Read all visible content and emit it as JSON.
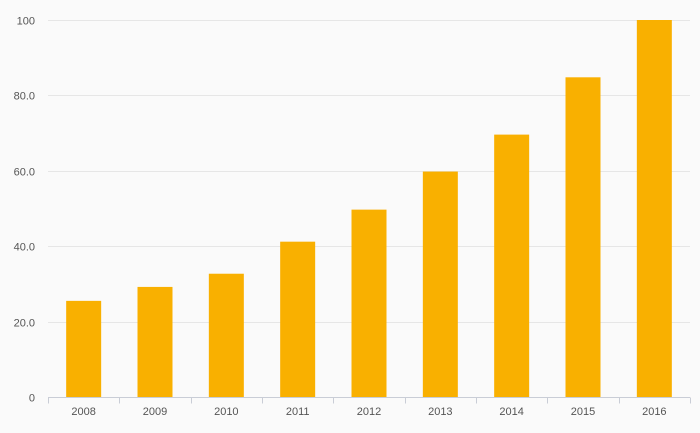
{
  "chart_data": {
    "type": "bar",
    "categories": [
      "2008",
      "2009",
      "2010",
      "2011",
      "2012",
      "2013",
      "2014",
      "2015",
      "2016"
    ],
    "values": [
      25.5,
      29.2,
      32.7,
      41.2,
      49.7,
      59.8,
      69.6,
      84.8,
      100
    ],
    "ylim": [
      0,
      100
    ],
    "yticks": [
      {
        "value": 0,
        "label": "0"
      },
      {
        "value": 20,
        "label": "20.0"
      },
      {
        "value": 40,
        "label": "40.0"
      },
      {
        "value": 60,
        "label": "60.0"
      },
      {
        "value": 80,
        "label": "80.0"
      },
      {
        "value": 100,
        "label": "100"
      }
    ],
    "grid": true,
    "title": "",
    "xlabel": "",
    "ylabel": "",
    "colors": {
      "bar": "#f9b000",
      "background": "#fafafa",
      "grid": "#e6e6e6",
      "axis": "#c9cdd6",
      "text": "#555555"
    }
  }
}
